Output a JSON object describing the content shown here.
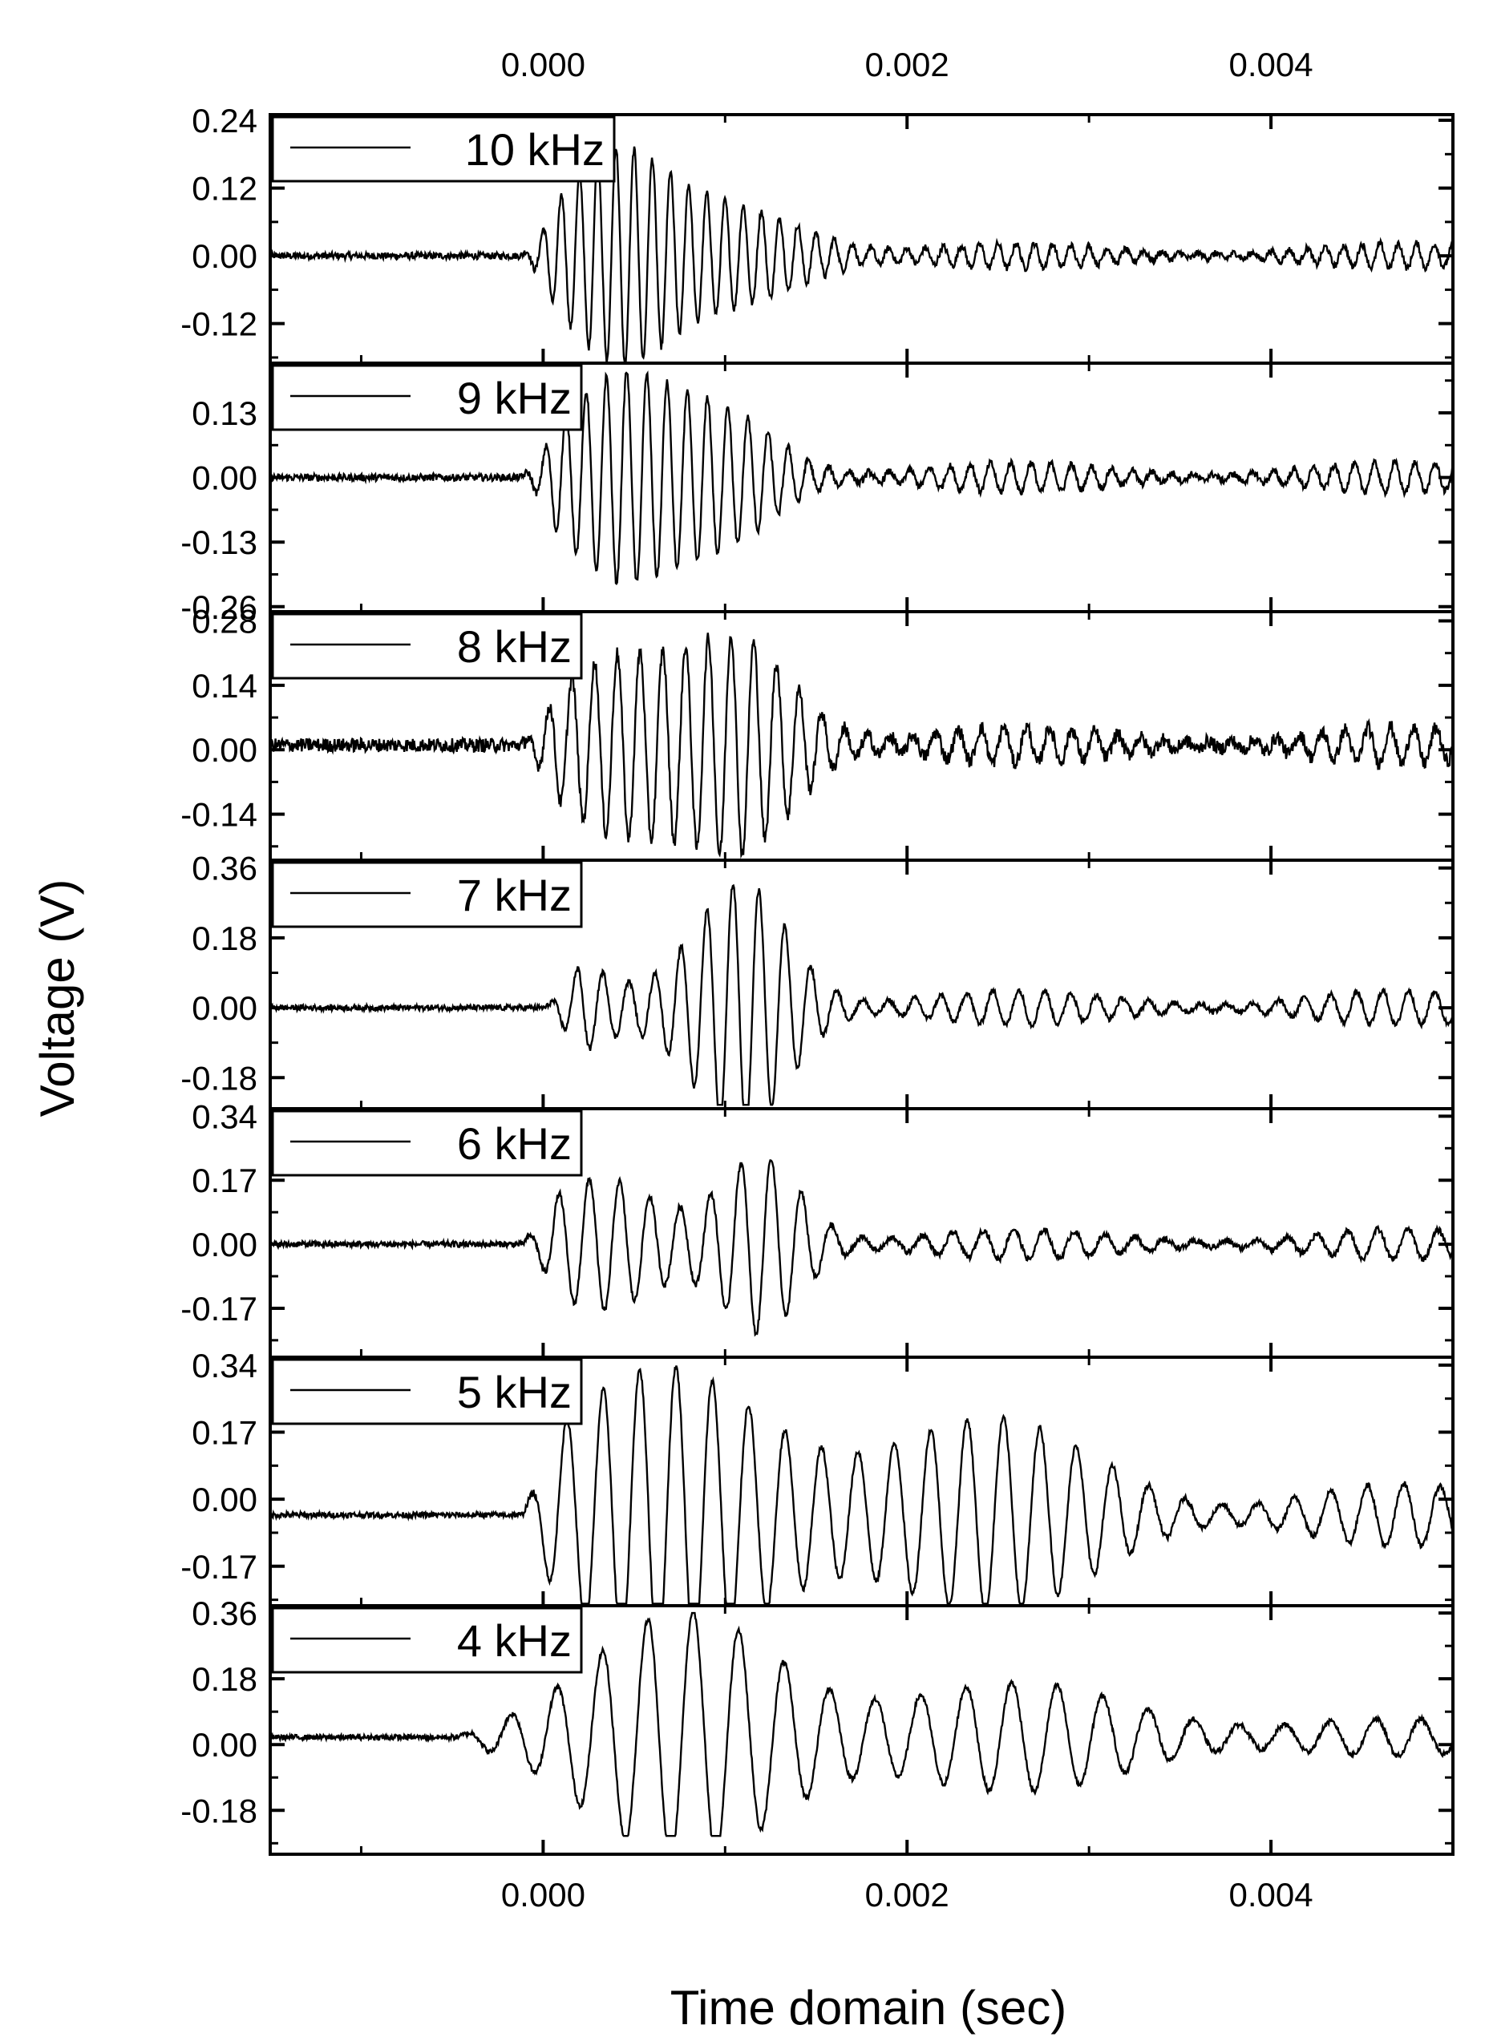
{
  "chart_data": {
    "type": "line",
    "xlabel": "Time domain (sec)",
    "ylabel": "Voltage (V)",
    "xlim": [
      -0.0015,
      0.005
    ],
    "xticks": [
      {
        "value": 0.0,
        "label": "0.000"
      },
      {
        "value": 0.002,
        "label": "0.002"
      },
      {
        "value": 0.004,
        "label": "0.004"
      }
    ],
    "grid": false,
    "legend": "top-left of each panel",
    "line_color": "#000000",
    "panels": [
      {
        "series": {
          "name": "10 kHz"
        },
        "ylim": [
          -0.19,
          0.25
        ],
        "yticks": [
          {
            "value": 0.24,
            "label": "0.24"
          },
          {
            "value": 0.12,
            "label": "0.12"
          },
          {
            "value": 0.0,
            "label": "0.00"
          },
          {
            "value": -0.12,
            "label": "-0.12"
          }
        ],
        "signal": {
          "freq_hz": 10000,
          "baseline": 0.0,
          "noise": 0.006,
          "onset": -0.00013,
          "bursts": [
            {
              "center": 0.0004,
              "width": 0.0004,
              "amp": 0.16
            },
            {
              "center": 0.0011,
              "width": 0.0005,
              "amp": 0.07
            }
          ],
          "tail_amp": 0.022,
          "clip": null
        }
      },
      {
        "series": {
          "name": "9 kHz"
        },
        "ylim": [
          -0.27,
          0.23
        ],
        "yticks": [
          {
            "value": 0.13,
            "label": "0.13"
          },
          {
            "value": 0.0,
            "label": "0.00"
          },
          {
            "value": -0.13,
            "label": "-0.13"
          },
          {
            "value": -0.26,
            "label": "-0.26"
          }
        ],
        "signal": {
          "freq_hz": 9000,
          "baseline": 0.0,
          "noise": 0.007,
          "onset": -0.00013,
          "bursts": [
            {
              "center": 0.0004,
              "width": 0.0004,
              "amp": 0.17
            },
            {
              "center": 0.001,
              "width": 0.0004,
              "amp": 0.11
            }
          ],
          "tail_amp": 0.03,
          "clip": null
        }
      },
      {
        "series": {
          "name": "8 kHz"
        },
        "ylim": [
          -0.24,
          0.3
        ],
        "yticks": [
          {
            "value": 0.28,
            "label": "0.28"
          },
          {
            "value": 0.14,
            "label": "0.14"
          },
          {
            "value": 0.0,
            "label": "0.00"
          },
          {
            "value": -0.14,
            "label": "-0.14"
          }
        ],
        "signal": {
          "freq_hz": 8000,
          "baseline": 0.01,
          "noise": 0.015,
          "onset": -0.00013,
          "bursts": [
            {
              "center": 0.0004,
              "width": 0.00045,
              "amp": 0.15
            },
            {
              "center": 0.0011,
              "width": 0.0004,
              "amp": 0.2
            }
          ],
          "tail_amp": 0.04,
          "clip": null
        }
      },
      {
        "series": {
          "name": "7 kHz"
        },
        "ylim": [
          -0.26,
          0.38
        ],
        "yticks": [
          {
            "value": 0.36,
            "label": "0.36"
          },
          {
            "value": 0.18,
            "label": "0.18"
          },
          {
            "value": 0.0,
            "label": "0.00"
          },
          {
            "value": -0.18,
            "label": "-0.18"
          }
        ],
        "signal": {
          "freq_hz": 7000,
          "baseline": 0.0,
          "noise": 0.007,
          "onset": 0.0,
          "bursts": [
            {
              "center": 0.0002,
              "width": 0.0002,
              "amp": 0.07
            },
            {
              "center": 0.0011,
              "width": 0.00035,
              "amp": 0.3
            }
          ],
          "tail_amp": 0.045,
          "clip": [
            -0.25,
            0.35
          ]
        }
      },
      {
        "series": {
          "name": "6 kHz"
        },
        "ylim": [
          -0.3,
          0.36
        ],
        "yticks": [
          {
            "value": 0.34,
            "label": "0.34"
          },
          {
            "value": 0.17,
            "label": "0.17"
          },
          {
            "value": 0.0,
            "label": "0.00"
          },
          {
            "value": -0.17,
            "label": "-0.17"
          }
        ],
        "signal": {
          "freq_hz": 6000,
          "baseline": 0.0,
          "noise": 0.008,
          "onset": -0.00013,
          "bursts": [
            {
              "center": 0.0003,
              "width": 0.0004,
              "amp": 0.14
            },
            {
              "center": 0.0012,
              "width": 0.0003,
              "amp": 0.22
            }
          ],
          "tail_amp": 0.04,
          "clip": null
        }
      },
      {
        "series": {
          "name": "5 kHz"
        },
        "ylim": [
          -0.27,
          0.36
        ],
        "yticks": [
          {
            "value": 0.34,
            "label": "0.34"
          },
          {
            "value": 0.17,
            "label": "0.17"
          },
          {
            "value": 0.0,
            "label": "0.00"
          },
          {
            "value": -0.17,
            "label": "-0.17"
          }
        ],
        "signal": {
          "freq_hz": 5000,
          "baseline": -0.04,
          "noise": 0.007,
          "onset": -0.00013,
          "bursts": [
            {
              "center": 0.0007,
              "width": 0.0008,
              "amp": 0.3
            },
            {
              "center": 0.0024,
              "width": 0.0008,
              "amp": 0.17
            }
          ],
          "tail_amp": 0.08,
          "clip": [
            -0.265,
            0.35
          ]
        }
      },
      {
        "series": {
          "name": "4 kHz"
        },
        "ylim": [
          -0.3,
          0.38
        ],
        "yticks": [
          {
            "value": 0.36,
            "label": "0.36"
          },
          {
            "value": 0.18,
            "label": "0.18"
          },
          {
            "value": 0.0,
            "label": "0.00"
          },
          {
            "value": -0.18,
            "label": "-0.18"
          }
        ],
        "signal": {
          "freq_hz": 4000,
          "baseline": 0.02,
          "noise": 0.007,
          "onset": -0.0005,
          "bursts": [
            {
              "center": 0.0008,
              "width": 0.0007,
              "amp": 0.3
            },
            {
              "center": 0.0026,
              "width": 0.001,
              "amp": 0.1
            }
          ],
          "tail_amp": 0.05,
          "clip": [
            -0.25,
            0.36
          ]
        }
      }
    ]
  }
}
